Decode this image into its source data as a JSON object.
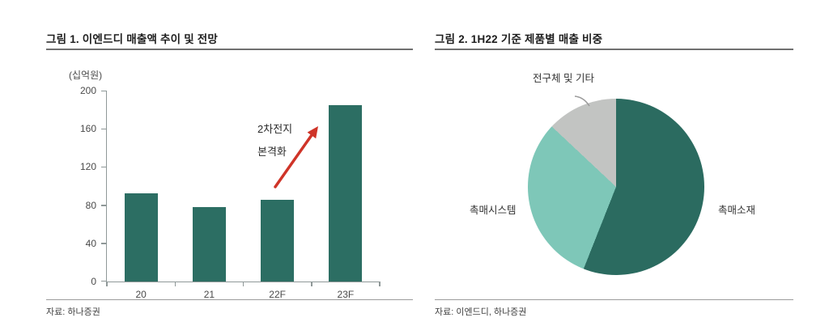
{
  "colors": {
    "bar": "#2c6e63",
    "arrow": "#cf3428",
    "axis": "#8f9898"
  },
  "figure1": {
    "title": "그림 1. 이엔드디 매출액 추이 및 전망",
    "unit_label": "(십억원)",
    "source": "자료: 하나증권",
    "annotation": {
      "line1": "2차전지",
      "line2": "본격화"
    },
    "chart_data": {
      "type": "bar",
      "categories": [
        "20",
        "21",
        "22F",
        "23F"
      ],
      "values": [
        92,
        78,
        86,
        185
      ],
      "title": "이엔드디 매출액 추이 및 전망",
      "xlabel": "",
      "ylabel": "(십억원)",
      "ylim": [
        0,
        200
      ],
      "yticks": [
        0,
        40,
        80,
        120,
        160,
        200
      ],
      "grid": false,
      "annotation": "2차전지 본격화"
    }
  },
  "figure2": {
    "title": "그림 2. 1H22 기준 제품별 매출 비중",
    "source": "자료: 이엔드디, 하나증권",
    "chart_data": {
      "type": "pie",
      "labels": [
        "촉매소재",
        "촉매시스템",
        "전구체 및 기타"
      ],
      "values": [
        56,
        31,
        13
      ],
      "unit": "%",
      "start_angle_deg": 0,
      "direction": "clockwise",
      "colors": [
        "#2b6b60",
        "#7ec7b8",
        "#c2c4c2"
      ],
      "title": "1H22 기준 제품별 매출 비중"
    }
  }
}
